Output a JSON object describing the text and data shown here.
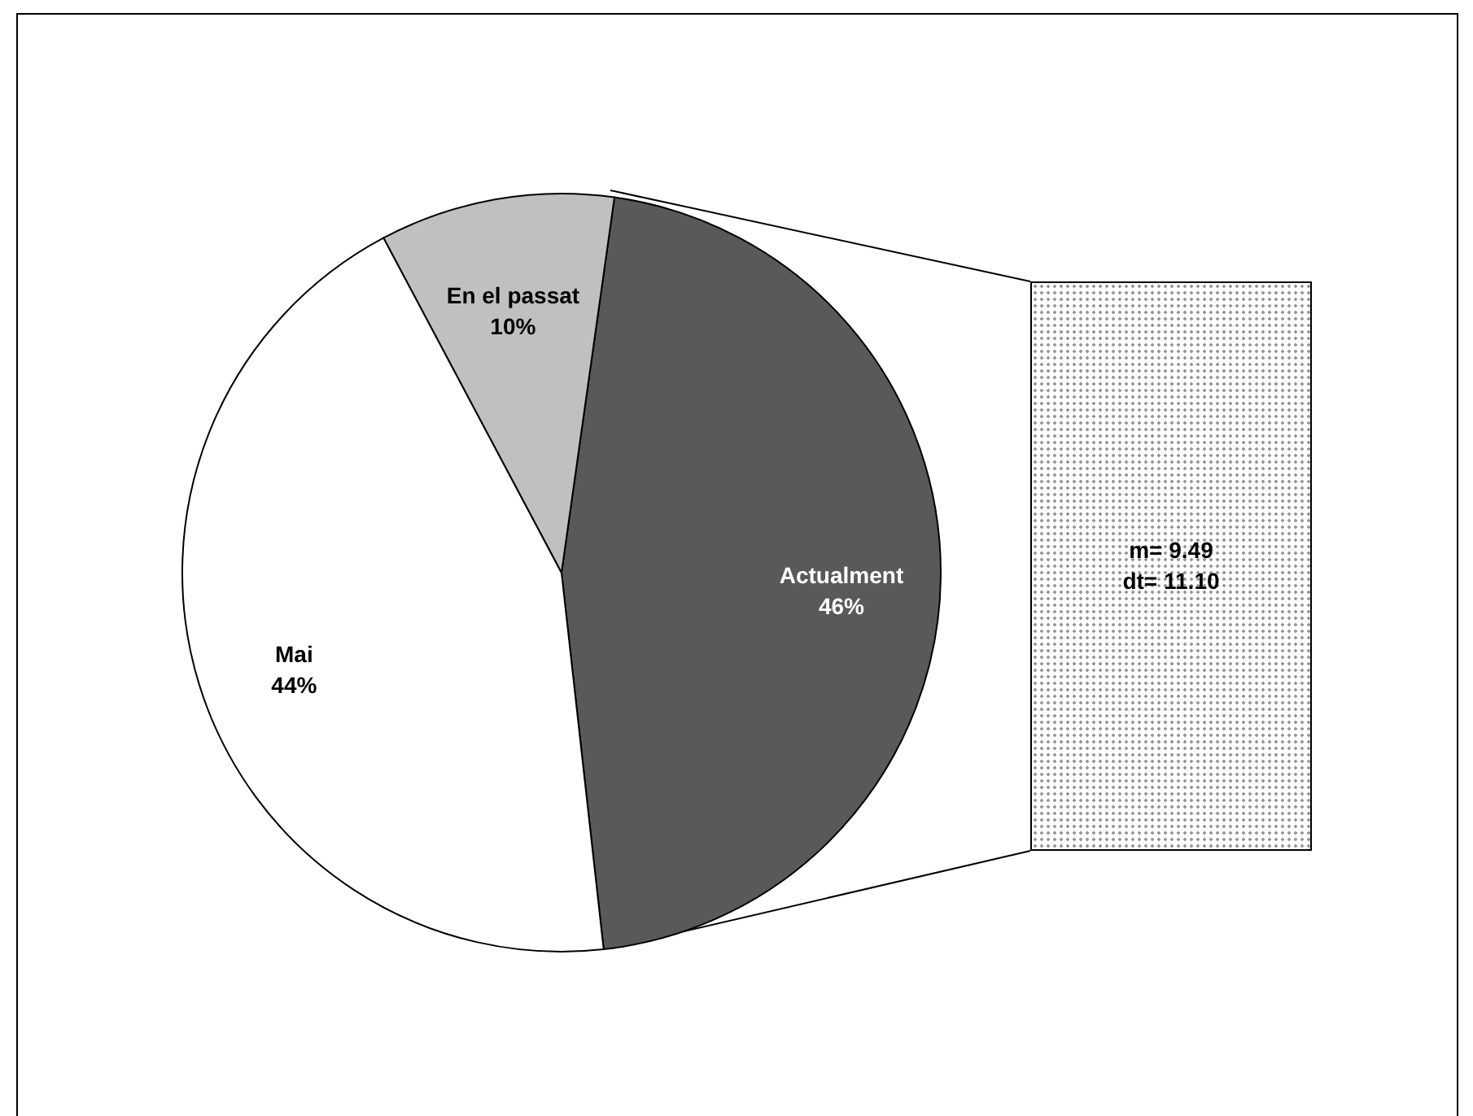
{
  "chart_data": {
    "type": "pie",
    "categories": [
      "Actualment",
      "Mai",
      "En el passat"
    ],
    "values": [
      46,
      44,
      10
    ],
    "colors": [
      "#595959",
      "#ffffff",
      "#c0c0c0"
    ],
    "value_labels": [
      "46%",
      "44%",
      "10%"
    ],
    "legend": false,
    "annotations": [
      "m= 9.49",
      "dt= 11.10"
    ]
  }
}
